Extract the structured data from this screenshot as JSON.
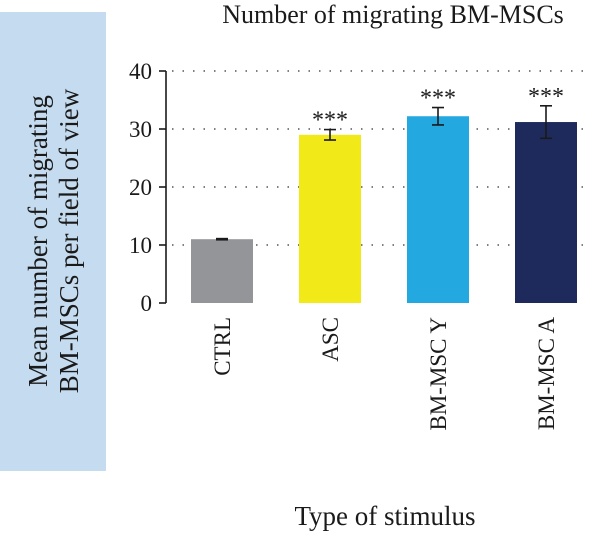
{
  "chart_data": {
    "type": "bar",
    "title": "Number of migrating BM-MSCs",
    "xlabel": "Type of stimulus",
    "ylabel_lines": [
      "Mean number of migrating",
      "BM-MSCs per field of view"
    ],
    "categories": [
      "CTRL",
      "ASC",
      "BM-MSC Y",
      "BM-MSC A"
    ],
    "values": [
      11,
      29,
      32.2,
      31.2
    ],
    "errors": [
      0.1,
      0.9,
      1.5,
      2.8
    ],
    "significance": [
      "",
      "***",
      "***",
      "***"
    ],
    "colors": [
      "#939598",
      "#f2e918",
      "#24a8e0",
      "#1e2a5c"
    ],
    "ylim": [
      0,
      40
    ],
    "yticks": [
      0,
      10,
      20,
      30,
      40
    ],
    "grid": "horizontal-dotted",
    "ylabel_background": "#c5dcf0"
  }
}
